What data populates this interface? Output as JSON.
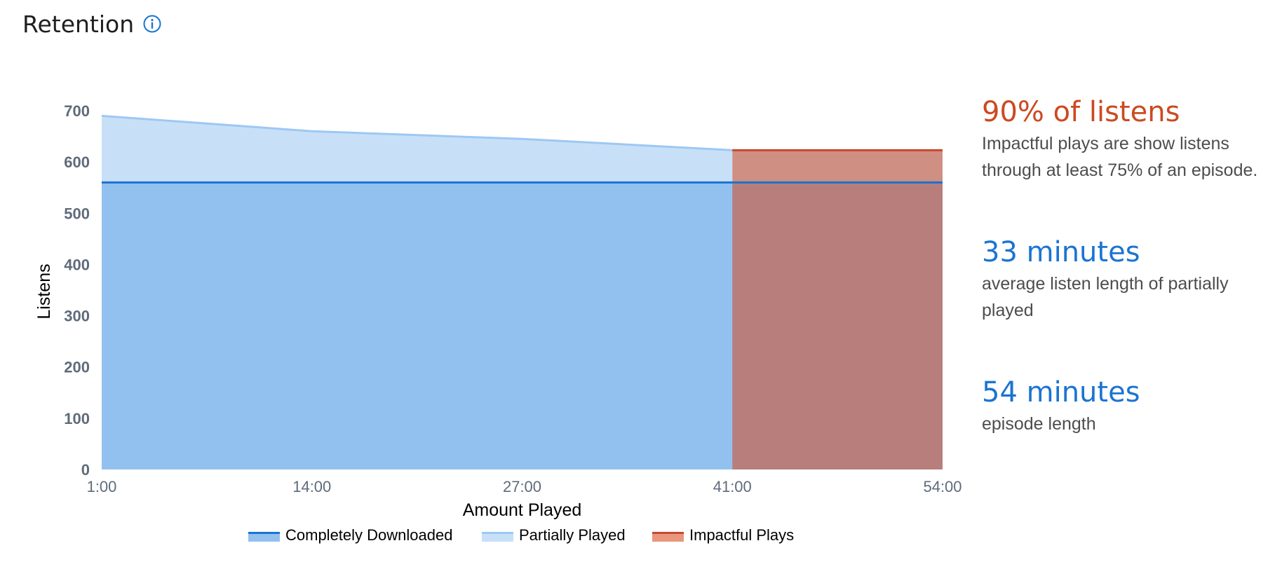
{
  "header": {
    "title": "Retention",
    "info_icon": "info-circle-icon"
  },
  "colors": {
    "completely_downloaded_fill": "#92c1f0",
    "completely_downloaded_line": "#1a73d1",
    "partially_played_fill": "#c7e0f8",
    "partially_played_line": "#9dc8f2",
    "impactful_fill": "#cf8f82",
    "impactful_overlap_fill": "#b87e7c",
    "impactful_line": "#c9482d",
    "legend_impactful_swatch": "#e8967e",
    "orange_accent": "#cc4a21",
    "blue_accent": "#1b74d2"
  },
  "chart_data": {
    "type": "area",
    "title": "",
    "xlabel": "Amount Played",
    "ylabel": "Listens",
    "x_ticks": [
      "1:00",
      "14:00",
      "27:00",
      "41:00",
      "54:00"
    ],
    "ylim": [
      0,
      700
    ],
    "y_ticks": [
      0,
      100,
      200,
      300,
      400,
      500,
      600,
      700
    ],
    "grid": false,
    "legend_position": "bottom",
    "series": [
      {
        "name": "Completely Downloaded",
        "x": [
          "1:00",
          "54:00"
        ],
        "values": [
          560,
          560
        ]
      },
      {
        "name": "Partially Played",
        "x": [
          "1:00",
          "14:00",
          "27:00",
          "41:00"
        ],
        "values": [
          690,
          660,
          645,
          623
        ]
      },
      {
        "name": "Impactful Plays",
        "x": [
          "41:00",
          "54:00"
        ],
        "values": [
          623,
          623
        ]
      }
    ]
  },
  "stats": [
    {
      "value": "90% of listens",
      "description_lines": [
        "Impactful plays are show listens",
        "through at least 75% of an episode."
      ],
      "color": "#cc4a21"
    },
    {
      "value": "33 minutes",
      "description_lines": [
        "average listen length of partially",
        "played"
      ],
      "color": "#1b74d2"
    },
    {
      "value": "54 minutes",
      "description_lines": [
        "episode length"
      ],
      "color": "#1b74d2"
    }
  ]
}
